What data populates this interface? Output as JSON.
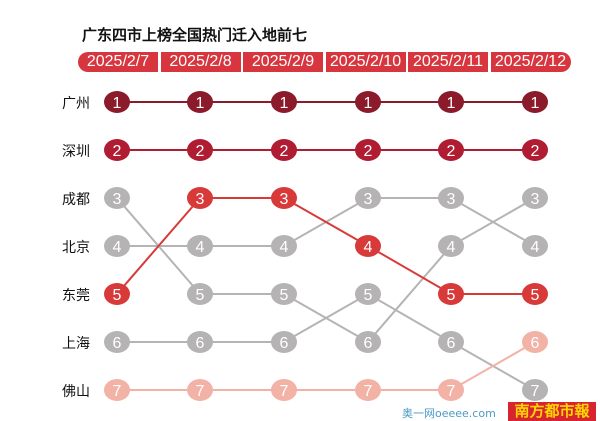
{
  "chart_data": {
    "type": "bump",
    "title": "广东四市上榜全国热门迁入地前七",
    "categories": [
      "2025/2/7",
      "2025/2/8",
      "2025/2/9",
      "2025/2/10",
      "2025/2/11",
      "2025/2/12"
    ],
    "row_labels": [
      "广州",
      "深圳",
      "成都",
      "北京",
      "东莞",
      "上海",
      "佛山"
    ],
    "y_axis": "rank (1 top, 7 bottom)",
    "series": [
      {
        "name": "广州",
        "ranks": [
          1,
          1,
          1,
          1,
          1,
          1
        ],
        "color": "#8b1a2b"
      },
      {
        "name": "深圳",
        "ranks": [
          2,
          2,
          2,
          2,
          2,
          2
        ],
        "color": "#b01c32"
      },
      {
        "name": "成都",
        "ranks": [
          3,
          5,
          5,
          6,
          4,
          3
        ],
        "color": "#b5b3b4"
      },
      {
        "name": "北京",
        "ranks": [
          4,
          4,
          4,
          3,
          3,
          4
        ],
        "color": "#b5b3b4"
      },
      {
        "name": "东莞",
        "ranks": [
          5,
          3,
          3,
          4,
          5,
          5
        ],
        "color": "#d83a3a"
      },
      {
        "name": "上海",
        "ranks": [
          6,
          6,
          6,
          5,
          6,
          7
        ],
        "color": "#b5b3b4"
      },
      {
        "name": "佛山",
        "ranks": [
          7,
          7,
          7,
          7,
          7,
          6
        ],
        "color": "#f2b2a6"
      }
    ],
    "header_color": "#d8363e"
  },
  "logo": {
    "main": "南方都市報",
    "sub": "奥一网oeeee.com"
  }
}
